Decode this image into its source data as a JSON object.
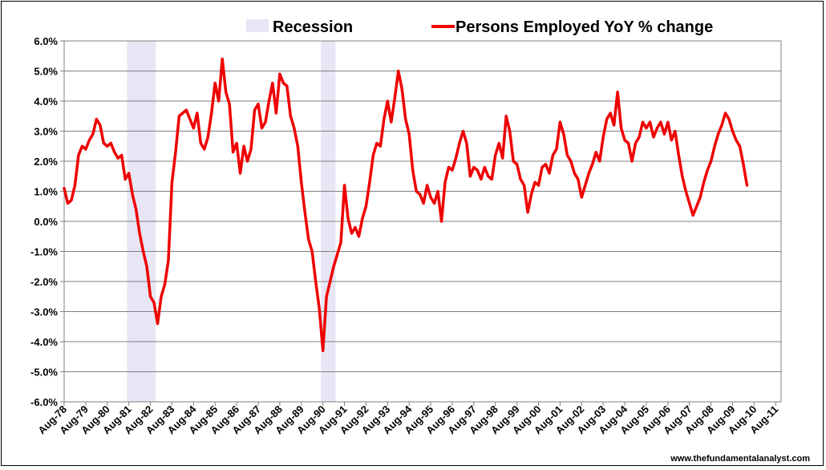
{
  "chart_data": {
    "type": "line",
    "title": "",
    "xlabel": "",
    "ylabel": "",
    "ylim": [
      -6,
      6
    ],
    "yticks": [
      6,
      5,
      4,
      3,
      2,
      1,
      0,
      -1,
      -2,
      -3,
      -4,
      -5,
      -6
    ],
    "ytick_labels": [
      "6.0%",
      "5.0%",
      "4.0%",
      "3.0%",
      "2.0%",
      "1.0%",
      "0.0%",
      "-1.0%",
      "-2.0%",
      "-3.0%",
      "-4.0%",
      "-5.0%",
      "-6.0%"
    ],
    "xlim": [
      "Aug-78",
      "Nov-11"
    ],
    "xtick_labels": [
      "Aug-78",
      "Aug-79",
      "Aug-80",
      "Aug-81",
      "Aug-82",
      "Aug-83",
      "Aug-84",
      "Aug-85",
      "Aug-86",
      "Aug-87",
      "Aug-88",
      "Aug-89",
      "Aug-90",
      "Aug-91",
      "Aug-92",
      "Aug-93",
      "Aug-94",
      "Aug-95",
      "Aug-96",
      "Aug-97",
      "Aug-98",
      "Aug-99",
      "Aug-00",
      "Aug-01",
      "Aug-02",
      "Aug-03",
      "Aug-04",
      "Aug-05",
      "Aug-06",
      "Aug-07",
      "Aug-08",
      "Aug-09",
      "Aug-10",
      "Aug-11"
    ],
    "grid": true,
    "legend_placement": "top",
    "recessions": [
      {
        "start": "Jul-81",
        "end": "Nov-82"
      },
      {
        "start": "Jul-90",
        "end": "Mar-91"
      }
    ],
    "series": [
      {
        "name": "Persons Employed YoY % change",
        "color": "#ee0000",
        "points": [
          [
            "Aug-78",
            1.1
          ],
          [
            "Oct-78",
            0.6
          ],
          [
            "Dec-78",
            0.7
          ],
          [
            "Feb-79",
            1.2
          ],
          [
            "Apr-79",
            2.2
          ],
          [
            "Jun-79",
            2.5
          ],
          [
            "Aug-79",
            2.4
          ],
          [
            "Oct-79",
            2.7
          ],
          [
            "Dec-79",
            2.9
          ],
          [
            "Feb-80",
            3.4
          ],
          [
            "Apr-80",
            3.2
          ],
          [
            "Jun-80",
            2.6
          ],
          [
            "Aug-80",
            2.5
          ],
          [
            "Oct-80",
            2.6
          ],
          [
            "Dec-80",
            2.3
          ],
          [
            "Feb-81",
            2.1
          ],
          [
            "Apr-81",
            2.2
          ],
          [
            "Jun-81",
            1.4
          ],
          [
            "Aug-81",
            1.6
          ],
          [
            "Oct-81",
            0.9
          ],
          [
            "Dec-81",
            0.4
          ],
          [
            "Feb-82",
            -0.4
          ],
          [
            "Apr-82",
            -1.0
          ],
          [
            "Jun-82",
            -1.5
          ],
          [
            "Aug-82",
            -2.5
          ],
          [
            "Oct-82",
            -2.7
          ],
          [
            "Dec-82",
            -3.4
          ],
          [
            "Feb-83",
            -2.5
          ],
          [
            "Apr-83",
            -2.1
          ],
          [
            "Jun-83",
            -1.3
          ],
          [
            "Aug-83",
            1.3
          ],
          [
            "Oct-83",
            2.3
          ],
          [
            "Dec-83",
            3.5
          ],
          [
            "Feb-84",
            3.6
          ],
          [
            "Apr-84",
            3.7
          ],
          [
            "Jun-84",
            3.4
          ],
          [
            "Aug-84",
            3.1
          ],
          [
            "Oct-84",
            3.6
          ],
          [
            "Dec-84",
            2.6
          ],
          [
            "Feb-85",
            2.4
          ],
          [
            "Apr-85",
            2.8
          ],
          [
            "Jun-85",
            3.6
          ],
          [
            "Aug-85",
            4.6
          ],
          [
            "Oct-85",
            4.0
          ],
          [
            "Dec-85",
            5.4
          ],
          [
            "Feb-86",
            4.3
          ],
          [
            "Apr-86",
            3.9
          ],
          [
            "Jun-86",
            2.3
          ],
          [
            "Aug-86",
            2.6
          ],
          [
            "Oct-86",
            1.6
          ],
          [
            "Dec-86",
            2.5
          ],
          [
            "Feb-87",
            2.0
          ],
          [
            "Apr-87",
            2.4
          ],
          [
            "Jun-87",
            3.7
          ],
          [
            "Aug-87",
            3.9
          ],
          [
            "Oct-87",
            3.1
          ],
          [
            "Dec-87",
            3.3
          ],
          [
            "Feb-88",
            4.0
          ],
          [
            "Apr-88",
            4.6
          ],
          [
            "Jun-88",
            3.6
          ],
          [
            "Aug-88",
            4.9
          ],
          [
            "Oct-88",
            4.6
          ],
          [
            "Dec-88",
            4.5
          ],
          [
            "Feb-89",
            3.5
          ],
          [
            "Apr-89",
            3.1
          ],
          [
            "Jun-89",
            2.5
          ],
          [
            "Aug-89",
            1.3
          ],
          [
            "Oct-89",
            0.3
          ],
          [
            "Dec-89",
            -0.6
          ],
          [
            "Feb-90",
            -1.0
          ],
          [
            "Apr-90",
            -2.0
          ],
          [
            "Jun-90",
            -2.9
          ],
          [
            "Aug-90",
            -4.3
          ],
          [
            "Oct-90",
            -2.5
          ],
          [
            "Dec-90",
            -2.0
          ],
          [
            "Feb-91",
            -1.5
          ],
          [
            "Apr-91",
            -1.1
          ],
          [
            "Jun-91",
            -0.7
          ],
          [
            "Aug-91",
            1.2
          ],
          [
            "Oct-91",
            0.1
          ],
          [
            "Dec-91",
            -0.4
          ],
          [
            "Feb-92",
            -0.2
          ],
          [
            "Apr-92",
            -0.5
          ],
          [
            "Jun-92",
            0.1
          ],
          [
            "Aug-92",
            0.5
          ],
          [
            "Oct-92",
            1.3
          ],
          [
            "Dec-92",
            2.2
          ],
          [
            "Feb-93",
            2.6
          ],
          [
            "Apr-93",
            2.5
          ],
          [
            "Jun-93",
            3.4
          ],
          [
            "Aug-93",
            4.0
          ],
          [
            "Oct-93",
            3.3
          ],
          [
            "Dec-93",
            4.1
          ],
          [
            "Feb-94",
            5.0
          ],
          [
            "Apr-94",
            4.4
          ],
          [
            "Jun-94",
            3.4
          ],
          [
            "Aug-94",
            2.9
          ],
          [
            "Oct-94",
            1.7
          ],
          [
            "Dec-94",
            1.0
          ],
          [
            "Feb-95",
            0.9
          ],
          [
            "Apr-95",
            0.6
          ],
          [
            "Jun-95",
            1.2
          ],
          [
            "Aug-95",
            0.8
          ],
          [
            "Oct-95",
            0.6
          ],
          [
            "Dec-95",
            1.0
          ],
          [
            "Feb-96",
            0.0
          ],
          [
            "Apr-96",
            1.3
          ],
          [
            "Jun-96",
            1.8
          ],
          [
            "Aug-96",
            1.7
          ],
          [
            "Oct-96",
            2.1
          ],
          [
            "Dec-96",
            2.6
          ],
          [
            "Feb-97",
            3.0
          ],
          [
            "Apr-97",
            2.6
          ],
          [
            "Jun-97",
            1.5
          ],
          [
            "Aug-97",
            1.8
          ],
          [
            "Oct-97",
            1.7
          ],
          [
            "Dec-97",
            1.4
          ],
          [
            "Feb-98",
            1.8
          ],
          [
            "Apr-98",
            1.5
          ],
          [
            "Jun-98",
            1.4
          ],
          [
            "Aug-98",
            2.2
          ],
          [
            "Oct-98",
            2.6
          ],
          [
            "Dec-98",
            2.1
          ],
          [
            "Feb-99",
            3.5
          ],
          [
            "Apr-99",
            3.0
          ],
          [
            "Jun-99",
            2.0
          ],
          [
            "Aug-99",
            1.9
          ],
          [
            "Oct-99",
            1.4
          ],
          [
            "Dec-99",
            1.2
          ],
          [
            "Feb-00",
            0.3
          ],
          [
            "Apr-00",
            0.9
          ],
          [
            "Jun-00",
            1.3
          ],
          [
            "Aug-00",
            1.2
          ],
          [
            "Oct-00",
            1.8
          ],
          [
            "Dec-00",
            1.9
          ],
          [
            "Feb-01",
            1.6
          ],
          [
            "Apr-01",
            2.2
          ],
          [
            "Jun-01",
            2.4
          ],
          [
            "Aug-01",
            3.3
          ],
          [
            "Oct-01",
            2.9
          ],
          [
            "Dec-01",
            2.2
          ],
          [
            "Feb-02",
            2.0
          ],
          [
            "Apr-02",
            1.6
          ],
          [
            "Jun-02",
            1.4
          ],
          [
            "Aug-02",
            0.8
          ],
          [
            "Oct-02",
            1.2
          ],
          [
            "Dec-02",
            1.6
          ],
          [
            "Feb-03",
            1.9
          ],
          [
            "Apr-03",
            2.3
          ],
          [
            "Jun-03",
            2.0
          ],
          [
            "Aug-03",
            2.8
          ],
          [
            "Oct-03",
            3.4
          ],
          [
            "Dec-03",
            3.6
          ],
          [
            "Feb-04",
            3.2
          ],
          [
            "Apr-04",
            4.3
          ],
          [
            "Jun-04",
            3.1
          ],
          [
            "Aug-04",
            2.7
          ],
          [
            "Oct-04",
            2.6
          ],
          [
            "Dec-04",
            2.0
          ],
          [
            "Feb-05",
            2.6
          ],
          [
            "Apr-05",
            2.8
          ],
          [
            "Jun-05",
            3.3
          ],
          [
            "Aug-05",
            3.1
          ],
          [
            "Oct-05",
            3.3
          ],
          [
            "Dec-05",
            2.8
          ],
          [
            "Feb-06",
            3.1
          ],
          [
            "Apr-06",
            3.3
          ],
          [
            "Jun-06",
            2.9
          ],
          [
            "Aug-06",
            3.3
          ],
          [
            "Oct-06",
            2.7
          ],
          [
            "Dec-06",
            3.0
          ],
          [
            "Feb-07",
            2.2
          ],
          [
            "Apr-07",
            1.5
          ],
          [
            "Jun-07",
            1.0
          ],
          [
            "Aug-07",
            0.6
          ],
          [
            "Oct-07",
            0.2
          ],
          [
            "Dec-07",
            0.5
          ],
          [
            "Feb-08",
            0.8
          ],
          [
            "Apr-08",
            1.3
          ],
          [
            "Jun-08",
            1.7
          ],
          [
            "Aug-08",
            2.0
          ],
          [
            "Oct-08",
            2.5
          ],
          [
            "Dec-08",
            2.9
          ],
          [
            "Feb-09",
            3.2
          ],
          [
            "Apr-09",
            3.6
          ],
          [
            "Jun-09",
            3.4
          ],
          [
            "Aug-09",
            3.0
          ],
          [
            "Oct-09",
            2.7
          ],
          [
            "Dec-09",
            2.5
          ],
          [
            "Feb-10",
            1.9
          ],
          [
            "Apr-10",
            1.2
          ]
        ]
      }
    ]
  },
  "legend": {
    "recession_label": "Recession",
    "series_label": "Persons Employed YoY % change"
  },
  "source_text": "www.thefundamentalanalyst.com"
}
